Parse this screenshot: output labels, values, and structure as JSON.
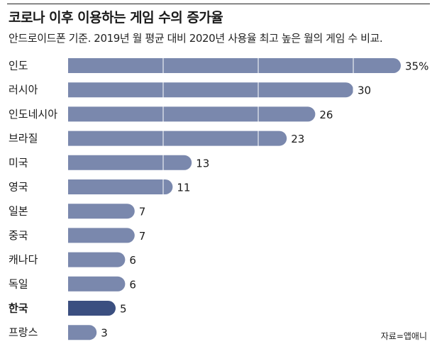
{
  "title": "코로나 이후 이용하는 게임 수의 증가율",
  "subtitle": "안드로이드폰 기준.  2019년 월 평균 대비 2020년 사용율 최고 높은 월의 게임 수 비교.",
  "source": "자료=앱애니",
  "colors": {
    "bar": "#7a88ad",
    "highlight": "#3b4f80",
    "gridline": "#ffffff"
  },
  "chart_data": {
    "type": "bar",
    "orientation": "horizontal",
    "title": "코로나 이후 이용하는 게임 수의 증가율",
    "subtitle": "안드로이드폰 기준.  2019년 월 평균 대비 2020년 사용율 최고 높은 월의 게임 수 비교.",
    "categories": [
      "인도",
      "러시아",
      "인도네시아",
      "브라질",
      "미국",
      "영국",
      "일본",
      "중국",
      "캐나다",
      "독일",
      "한국",
      "프랑스"
    ],
    "values": [
      35,
      30,
      26,
      23,
      13,
      11,
      7,
      7,
      6,
      6,
      5,
      3
    ],
    "value_labels": [
      "35%",
      "30",
      "26",
      "23",
      "13",
      "11",
      "7",
      "7",
      "6",
      "6",
      "5",
      "3"
    ],
    "highlight": "한국",
    "xlim": [
      0,
      35
    ],
    "grid_values": [
      10,
      20,
      30
    ],
    "xlabel": "",
    "ylabel": ""
  }
}
